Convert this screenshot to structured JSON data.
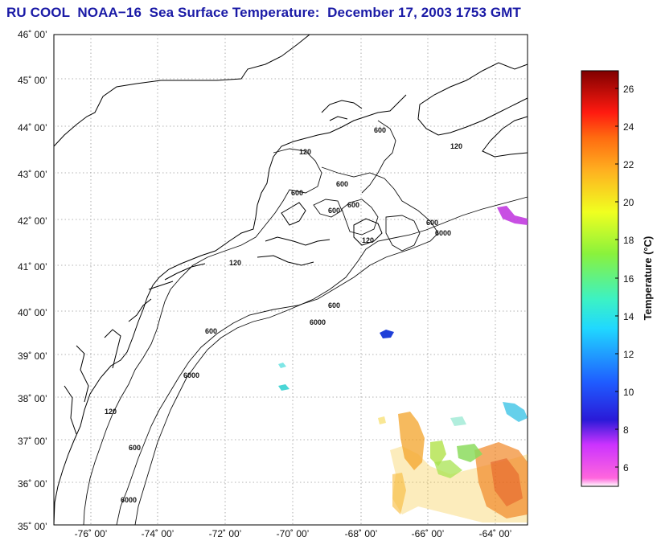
{
  "title": "RU COOL  NOAA−16  Sea Surface Temperature:  December 17, 2003 1753 GMT",
  "map": {
    "lat_labels": [
      "46˚ 00’",
      "45˚ 00’",
      "44˚ 00’",
      "43˚ 00’",
      "42˚ 00’",
      "41˚ 00’",
      "40˚ 00’",
      "39˚ 00’",
      "38˚ 00’",
      "37˚ 00’",
      "36˚ 00’",
      "35˚ 00’"
    ],
    "lon_labels": [
      "-76˚ 00’",
      "-74˚ 00’",
      "-72˚ 00’",
      "-70˚ 00’",
      "-68˚ 00’",
      "-66˚ 00’",
      "-64˚ 00’"
    ],
    "contour_labels": [
      "120",
      "600",
      "6000"
    ]
  },
  "colorbar": {
    "label": "Temperature (°C)",
    "ticks": [
      "26",
      "24",
      "22",
      "20",
      "18",
      "16",
      "14",
      "12",
      "10",
      "8",
      "6"
    ]
  }
}
